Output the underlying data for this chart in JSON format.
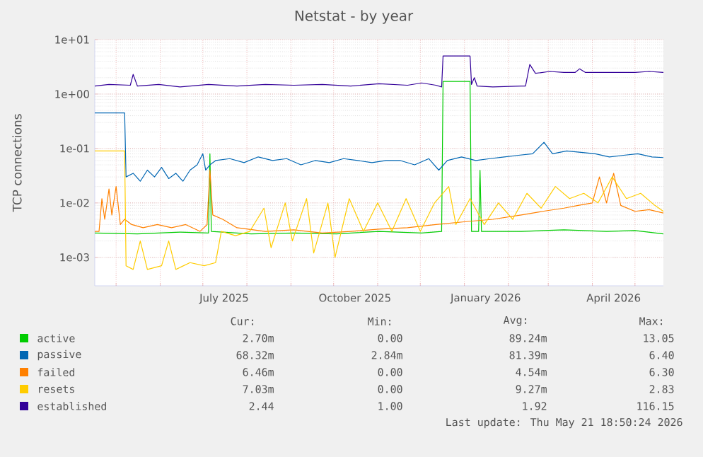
{
  "chart_data": {
    "type": "line",
    "title": "Netstat - by year",
    "ylabel": "TCP connections",
    "log": "y",
    "grid": true,
    "legend": "bottom",
    "marker": "none",
    "line_style": "solid",
    "xlim": [
      "2025-04-16",
      "2026-05-21"
    ],
    "xticks": [
      {
        "value": "2025-05-01",
        "label": null
      },
      {
        "value": "2025-06-01",
        "label": null
      },
      {
        "value": "2025-07-01",
        "label": null
      },
      {
        "value": "2025-07-16",
        "label": "July 2025"
      },
      {
        "value": "2025-08-01",
        "label": null
      },
      {
        "value": "2025-09-01",
        "label": null
      },
      {
        "value": "2025-10-01",
        "label": null
      },
      {
        "value": "2025-10-16",
        "label": "October 2025"
      },
      {
        "value": "2025-11-01",
        "label": null
      },
      {
        "value": "2025-12-01",
        "label": null
      },
      {
        "value": "2026-01-01",
        "label": null
      },
      {
        "value": "2026-01-16",
        "label": "January 2026"
      },
      {
        "value": "2026-02-01",
        "label": null
      },
      {
        "value": "2026-03-01",
        "label": null
      },
      {
        "value": "2026-04-01",
        "label": null
      },
      {
        "value": "2026-04-16",
        "label": "April 2026"
      },
      {
        "value": "2026-05-01",
        "label": null
      }
    ],
    "ylim": [
      0.0003,
      10
    ],
    "yticks": [
      {
        "value": 0.001,
        "label": "1e-03"
      },
      {
        "value": 0.01,
        "label": "1e-02"
      },
      {
        "value": 0.1,
        "label": "1e-01"
      },
      {
        "value": 1,
        "label": "1e+00"
      },
      {
        "value": 10,
        "label": "1e+01"
      }
    ],
    "series": [
      {
        "name": "active",
        "color": "#00cc00",
        "x": [
          "2025-04-16",
          "2025-05-16",
          "2025-06-15",
          "2025-07-05",
          "2025-07-06",
          "2025-07-07",
          "2025-08-04",
          "2025-09-03",
          "2025-10-03",
          "2025-11-02",
          "2025-12-02",
          "2025-12-16",
          "2025-12-17",
          "2026-01-05",
          "2026-01-06",
          "2026-01-11",
          "2026-01-12",
          "2026-01-13",
          "2026-02-10",
          "2026-03-12",
          "2026-04-11",
          "2026-05-01",
          "2026-05-21"
        ],
        "values": [
          0.0028,
          0.0027,
          0.0029,
          0.0028,
          0.08,
          0.003,
          0.0027,
          0.0028,
          0.0027,
          0.003,
          0.0028,
          0.003,
          1.7,
          1.7,
          0.003,
          0.003,
          0.04,
          0.003,
          0.003,
          0.0032,
          0.003,
          0.0031,
          0.0027
        ]
      },
      {
        "name": "passive",
        "color": "#0066b3",
        "x": [
          "2025-04-16",
          "2025-05-07",
          "2025-05-08",
          "2025-05-13",
          "2025-05-18",
          "2025-05-23",
          "2025-05-28",
          "2025-06-02",
          "2025-06-07",
          "2025-06-12",
          "2025-06-17",
          "2025-06-22",
          "2025-06-27",
          "2025-07-01",
          "2025-07-03",
          "2025-07-06",
          "2025-07-10",
          "2025-07-20",
          "2025-07-30",
          "2025-08-09",
          "2025-08-19",
          "2025-08-29",
          "2025-09-08",
          "2025-09-18",
          "2025-09-28",
          "2025-10-08",
          "2025-10-18",
          "2025-10-28",
          "2025-11-07",
          "2025-11-17",
          "2025-11-27",
          "2025-12-07",
          "2025-12-14",
          "2025-12-20",
          "2025-12-30",
          "2026-01-09",
          "2026-01-19",
          "2026-01-29",
          "2026-02-08",
          "2026-02-18",
          "2026-02-26",
          "2026-03-04",
          "2026-03-14",
          "2026-03-24",
          "2026-04-03",
          "2026-04-13",
          "2026-04-23",
          "2026-05-03",
          "2026-05-13",
          "2026-05-21"
        ],
        "values": [
          0.45,
          0.45,
          0.03,
          0.035,
          0.025,
          0.04,
          0.03,
          0.045,
          0.028,
          0.035,
          0.025,
          0.04,
          0.05,
          0.08,
          0.04,
          0.05,
          0.06,
          0.065,
          0.055,
          0.07,
          0.06,
          0.065,
          0.05,
          0.06,
          0.055,
          0.065,
          0.06,
          0.055,
          0.06,
          0.06,
          0.05,
          0.065,
          0.04,
          0.06,
          0.07,
          0.06,
          0.065,
          0.07,
          0.075,
          0.08,
          0.13,
          0.08,
          0.09,
          0.085,
          0.08,
          0.07,
          0.075,
          0.08,
          0.07,
          0.068
        ]
      },
      {
        "name": "failed",
        "color": "#ff8000",
        "x": [
          "2025-04-16",
          "2025-04-19",
          "2025-04-21",
          "2025-04-23",
          "2025-04-26",
          "2025-04-28",
          "2025-05-01",
          "2025-05-04",
          "2025-05-07",
          "2025-05-12",
          "2025-05-20",
          "2025-05-30",
          "2025-06-09",
          "2025-06-19",
          "2025-06-29",
          "2025-07-04",
          "2025-07-06",
          "2025-07-08",
          "2025-07-15",
          "2025-07-25",
          "2025-08-14",
          "2025-09-03",
          "2025-09-23",
          "2025-10-13",
          "2025-11-02",
          "2025-11-22",
          "2025-12-12",
          "2026-01-01",
          "2026-01-21",
          "2026-02-10",
          "2026-02-25",
          "2026-03-12",
          "2026-03-22",
          "2026-04-01",
          "2026-04-06",
          "2026-04-11",
          "2026-04-16",
          "2026-04-21",
          "2026-05-01",
          "2026-05-11",
          "2026-05-21"
        ],
        "values": [
          0.003,
          0.003,
          0.012,
          0.005,
          0.018,
          0.006,
          0.02,
          0.004,
          0.005,
          0.004,
          0.0035,
          0.004,
          0.0035,
          0.004,
          0.003,
          0.004,
          0.04,
          0.006,
          0.005,
          0.0035,
          0.003,
          0.0032,
          0.0028,
          0.003,
          0.0033,
          0.0035,
          0.004,
          0.0045,
          0.005,
          0.006,
          0.007,
          0.008,
          0.009,
          0.01,
          0.03,
          0.01,
          0.035,
          0.009,
          0.007,
          0.0075,
          0.0065
        ]
      },
      {
        "name": "resets",
        "color": "#ffcc00",
        "x": [
          "2025-04-16",
          "2025-05-07",
          "2025-05-08",
          "2025-05-13",
          "2025-05-18",
          "2025-05-23",
          "2025-06-02",
          "2025-06-07",
          "2025-06-12",
          "2025-06-22",
          "2025-07-02",
          "2025-07-10",
          "2025-07-14",
          "2025-07-24",
          "2025-08-03",
          "2025-08-13",
          "2025-08-18",
          "2025-08-28",
          "2025-09-02",
          "2025-09-12",
          "2025-09-17",
          "2025-09-27",
          "2025-10-02",
          "2025-10-12",
          "2025-10-22",
          "2025-11-01",
          "2025-11-11",
          "2025-11-21",
          "2025-12-01",
          "2025-12-11",
          "2025-12-21",
          "2025-12-26",
          "2026-01-05",
          "2026-01-15",
          "2026-01-25",
          "2026-02-04",
          "2026-02-14",
          "2026-02-24",
          "2026-03-06",
          "2026-03-16",
          "2026-03-26",
          "2026-04-05",
          "2026-04-15",
          "2026-04-25",
          "2026-05-05",
          "2026-05-15",
          "2026-05-21"
        ],
        "values": [
          0.09,
          0.09,
          0.0007,
          0.0006,
          0.002,
          0.0006,
          0.0007,
          0.002,
          0.0006,
          0.0008,
          0.0007,
          0.0008,
          0.003,
          0.0025,
          0.003,
          0.008,
          0.0015,
          0.01,
          0.002,
          0.012,
          0.0012,
          0.01,
          0.001,
          0.012,
          0.003,
          0.01,
          0.003,
          0.012,
          0.003,
          0.01,
          0.02,
          0.004,
          0.012,
          0.004,
          0.01,
          0.005,
          0.015,
          0.008,
          0.02,
          0.012,
          0.015,
          0.01,
          0.03,
          0.012,
          0.015,
          0.009,
          0.007
        ]
      },
      {
        "name": "established",
        "color": "#330099",
        "x": [
          "2025-04-16",
          "2025-04-26",
          "2025-05-11",
          "2025-05-13",
          "2025-05-16",
          "2025-05-31",
          "2025-06-15",
          "2025-07-05",
          "2025-07-25",
          "2025-08-14",
          "2025-09-03",
          "2025-09-23",
          "2025-10-13",
          "2025-11-02",
          "2025-11-22",
          "2025-12-02",
          "2025-12-12",
          "2025-12-16",
          "2025-12-17",
          "2026-01-05",
          "2026-01-06",
          "2026-01-08",
          "2026-01-10",
          "2026-01-21",
          "2026-02-10",
          "2026-02-13",
          "2026-02-16",
          "2026-02-20",
          "2026-03-02",
          "2026-03-12",
          "2026-03-20",
          "2026-03-23",
          "2026-03-27",
          "2026-04-11",
          "2026-05-01",
          "2026-05-11",
          "2026-05-21"
        ],
        "values": [
          1.4,
          1.5,
          1.45,
          2.3,
          1.4,
          1.5,
          1.35,
          1.5,
          1.4,
          1.5,
          1.45,
          1.5,
          1.4,
          1.55,
          1.45,
          1.6,
          1.45,
          1.35,
          5.0,
          5.0,
          1.5,
          2.0,
          1.4,
          1.35,
          1.4,
          1.4,
          3.5,
          2.4,
          2.6,
          2.5,
          2.5,
          2.9,
          2.5,
          2.5,
          2.5,
          2.6,
          2.5
        ]
      }
    ],
    "annotations": [
      "Cur:",
      "Min:",
      "Avg:",
      "Max:",
      "2.70m",
      "0.00",
      "89.24m",
      "13.05",
      "68.32m",
      "2.84m",
      "81.39m",
      "6.40",
      "6.46m",
      "0.00",
      "4.54m",
      "6.30",
      "7.03m",
      "0.00",
      "9.27m",
      "2.83",
      "2.44",
      "1.00",
      "1.92",
      "116.15",
      "Last update: Thu May 21 18:50:24 2026"
    ]
  }
}
